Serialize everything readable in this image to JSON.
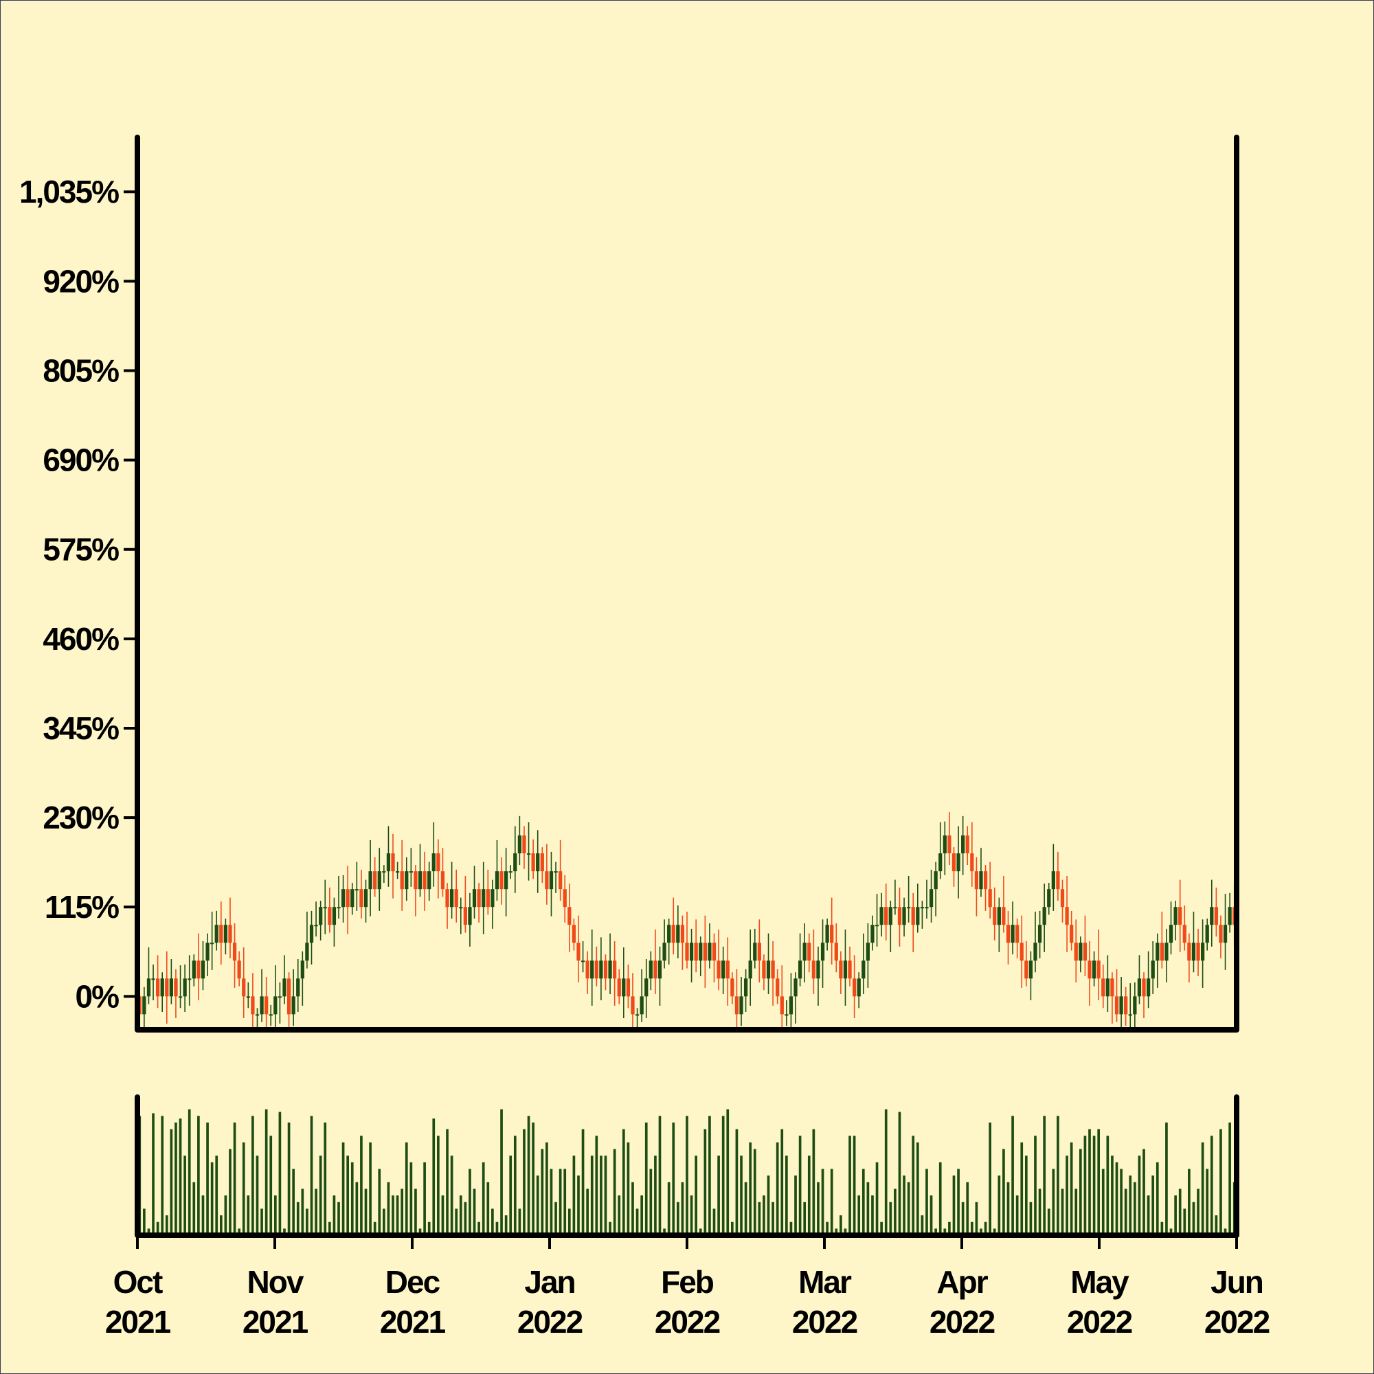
{
  "chart_data": {
    "type": "candlestick",
    "up_color": "#1e4d14",
    "down_color": "#f04a1a",
    "ylim": [
      -43,
      1105
    ],
    "yticks": [
      {
        "value": 0,
        "label": "0%"
      },
      {
        "value": 115,
        "label": "115%"
      },
      {
        "value": 230,
        "label": "230%"
      },
      {
        "value": 345,
        "label": "345%"
      },
      {
        "value": 460,
        "label": "460%"
      },
      {
        "value": 575,
        "label": "575%"
      },
      {
        "value": 690,
        "label": "690%"
      },
      {
        "value": 805,
        "label": "805%"
      },
      {
        "value": 920,
        "label": "920%"
      },
      {
        "value": 1035,
        "label": "1,035%"
      }
    ],
    "xticks": [
      [
        "Oct",
        "2021"
      ],
      [
        "Nov",
        "2021"
      ],
      [
        "Dec",
        "2021"
      ],
      [
        "Jan",
        "2022"
      ],
      [
        "Feb",
        "2022"
      ],
      [
        "Mar",
        "2022"
      ],
      [
        "Apr",
        "2022"
      ],
      [
        "May",
        "2022"
      ],
      [
        "Jun",
        "2022"
      ]
    ],
    "volume_lim": [
      0,
      100
    ],
    "open": [
      0,
      -23,
      0,
      23,
      23,
      0,
      23,
      0,
      23,
      0,
      0,
      23,
      23,
      46,
      23,
      46,
      69,
      69,
      92,
      69,
      92,
      69,
      46,
      23,
      0,
      0,
      -23,
      -23,
      0,
      -23,
      -23,
      0,
      0,
      23,
      -23,
      0,
      23,
      46,
      69,
      92,
      92,
      115,
      115,
      92,
      115,
      115,
      138,
      115,
      138,
      138,
      115,
      138,
      161,
      138,
      161,
      161,
      184,
      161,
      161,
      138,
      161,
      161,
      138,
      161,
      138,
      161,
      184,
      161,
      138,
      115,
      138,
      115,
      115,
      92,
      115,
      138,
      115,
      138,
      115,
      138,
      161,
      138,
      161,
      161,
      184,
      207,
      184,
      184,
      161,
      184,
      161,
      138,
      161,
      161,
      138,
      115,
      92,
      69,
      46,
      46,
      23,
      46,
      23,
      46,
      23,
      46,
      23,
      0,
      23,
      0,
      -23,
      -23,
      0,
      23,
      46,
      23,
      46,
      69,
      92,
      69,
      92,
      69,
      46,
      69,
      46,
      69,
      46,
      69,
      46,
      23,
      46,
      23,
      0,
      -23,
      0,
      23,
      46,
      69,
      46,
      23,
      46,
      23,
      0,
      -23,
      -23,
      0,
      23,
      46,
      69,
      46,
      23,
      46,
      69,
      92,
      69,
      46,
      23,
      46,
      23,
      0,
      23,
      46,
      69,
      92,
      92,
      115,
      92,
      115,
      115,
      92,
      115,
      115,
      92,
      115,
      115,
      115,
      138,
      161,
      184,
      207,
      184,
      161,
      184,
      207,
      184,
      161,
      138,
      161,
      138,
      115,
      92,
      115,
      92,
      69,
      92,
      69,
      46,
      23,
      46,
      69,
      92,
      115,
      138,
      161,
      138,
      115,
      92,
      69,
      46,
      69,
      46,
      23,
      46,
      23,
      0,
      23,
      0,
      -23,
      0,
      -23,
      -23,
      0,
      23,
      0,
      23,
      46,
      69,
      46,
      69,
      92,
      115,
      92,
      69,
      46,
      69,
      46,
      69,
      92,
      115,
      92,
      69,
      92,
      115
    ],
    "high": [
      25,
      12,
      63,
      41,
      53,
      31,
      58,
      48,
      35,
      40,
      41,
      53,
      54,
      81,
      71,
      81,
      109,
      110,
      122,
      100,
      127,
      94,
      58,
      63,
      18,
      30,
      -15,
      35,
      25,
      -11,
      40,
      18,
      53,
      31,
      35,
      48,
      58,
      109,
      110,
      122,
      123,
      150,
      140,
      127,
      155,
      156,
      168,
      146,
      173,
      163,
      150,
      201,
      179,
      191,
      169,
      219,
      209,
      173,
      201,
      179,
      191,
      169,
      196,
      186,
      173,
      224,
      202,
      191,
      146,
      173,
      163,
      127,
      155,
      133,
      168,
      146,
      173,
      163,
      150,
      201,
      179,
      191,
      169,
      219,
      232,
      219,
      224,
      202,
      214,
      192,
      196,
      186,
      173,
      201,
      156,
      145,
      100,
      104,
      71,
      58,
      86,
      64,
      76,
      54,
      81,
      71,
      35,
      63,
      41,
      30,
      -15,
      35,
      48,
      58,
      86,
      64,
      99,
      100,
      127,
      117,
      104,
      109,
      87,
      99,
      77,
      104,
      94,
      81,
      86,
      64,
      76,
      31,
      35,
      25,
      35,
      86,
      87,
      99,
      54,
      81,
      71,
      35,
      40,
      -5,
      30,
      31,
      81,
      94,
      81,
      86,
      64,
      99,
      100,
      127,
      94,
      58,
      86,
      64,
      53,
      31,
      81,
      94,
      104,
      132,
      133,
      145,
      123,
      150,
      140,
      127,
      155,
      133,
      145,
      123,
      150,
      163,
      173,
      224,
      225,
      237,
      192,
      219,
      232,
      219,
      224,
      179,
      191,
      169,
      173,
      140,
      127,
      155,
      110,
      122,
      100,
      104,
      71,
      58,
      109,
      110,
      145,
      146,
      196,
      186,
      150,
      155,
      110,
      99,
      77,
      104,
      71,
      58,
      86,
      41,
      53,
      31,
      35,
      25,
      12,
      17,
      18,
      53,
      31,
      58,
      71,
      81,
      109,
      87,
      122,
      123,
      150,
      117,
      81,
      109,
      87,
      99,
      100,
      150,
      140,
      104,
      132,
      133,
      145
    ],
    "low": [
      -43,
      -58,
      -10,
      -5,
      -15,
      -20,
      -35,
      -10,
      -28,
      -15,
      -20,
      -12,
      13,
      -5,
      8,
      26,
      34,
      59,
      41,
      54,
      49,
      11,
      13,
      -28,
      -15,
      -43,
      -58,
      -33,
      -51,
      -38,
      -43,
      -35,
      -10,
      -51,
      -38,
      -20,
      -12,
      36,
      41,
      77,
      72,
      80,
      82,
      64,
      100,
      95,
      80,
      105,
      110,
      100,
      95,
      103,
      128,
      110,
      146,
      141,
      126,
      151,
      110,
      123,
      141,
      103,
      128,
      110,
      123,
      141,
      126,
      128,
      87,
      100,
      95,
      80,
      82,
      64,
      100,
      95,
      80,
      105,
      87,
      123,
      118,
      103,
      151,
      133,
      169,
      164,
      149,
      151,
      133,
      146,
      118,
      103,
      133,
      123,
      95,
      57,
      59,
      18,
      31,
      3,
      -12,
      13,
      -5,
      8,
      3,
      -12,
      -10,
      -28,
      -15,
      -43,
      -58,
      -33,
      -28,
      8,
      3,
      -12,
      36,
      41,
      54,
      49,
      34,
      36,
      18,
      31,
      26,
      11,
      36,
      18,
      8,
      3,
      -12,
      -10,
      -51,
      -38,
      -20,
      -12,
      36,
      18,
      8,
      3,
      -12,
      -10,
      -51,
      -38,
      -43,
      -35,
      13,
      18,
      31,
      3,
      -12,
      11,
      59,
      41,
      31,
      3,
      -12,
      13,
      -28,
      -15,
      3,
      11,
      59,
      64,
      77,
      72,
      57,
      105,
      64,
      77,
      95,
      57,
      82,
      87,
      100,
      95,
      103,
      151,
      156,
      169,
      141,
      126,
      156,
      169,
      141,
      103,
      128,
      110,
      100,
      72,
      57,
      82,
      41,
      54,
      49,
      11,
      13,
      -5,
      31,
      49,
      57,
      105,
      110,
      123,
      95,
      57,
      59,
      18,
      31,
      26,
      -12,
      13,
      -5,
      -15,
      -20,
      -35,
      -33,
      -51,
      -38,
      -43,
      -58,
      -10,
      -28,
      -15,
      3,
      11,
      36,
      18,
      54,
      72,
      57,
      59,
      18,
      31,
      26,
      11,
      59,
      64,
      77,
      49,
      34,
      82,
      64
    ],
    "close": [
      -23,
      0,
      23,
      23,
      0,
      23,
      0,
      23,
      0,
      0,
      23,
      23,
      46,
      23,
      46,
      69,
      69,
      92,
      69,
      92,
      69,
      46,
      23,
      0,
      0,
      -23,
      -23,
      0,
      -23,
      -23,
      0,
      0,
      23,
      -23,
      0,
      23,
      46,
      69,
      92,
      92,
      115,
      115,
      92,
      115,
      115,
      138,
      115,
      138,
      138,
      115,
      138,
      161,
      138,
      161,
      161,
      184,
      161,
      161,
      138,
      161,
      161,
      138,
      161,
      138,
      161,
      184,
      161,
      138,
      115,
      138,
      115,
      115,
      92,
      115,
      138,
      115,
      138,
      115,
      138,
      161,
      138,
      161,
      161,
      184,
      207,
      184,
      184,
      161,
      184,
      161,
      138,
      161,
      161,
      138,
      115,
      92,
      69,
      46,
      46,
      23,
      46,
      23,
      46,
      23,
      46,
      23,
      0,
      23,
      0,
      -23,
      -23,
      0,
      23,
      46,
      23,
      46,
      69,
      92,
      69,
      92,
      69,
      46,
      69,
      46,
      69,
      46,
      69,
      46,
      23,
      46,
      23,
      0,
      -23,
      0,
      23,
      46,
      69,
      46,
      23,
      46,
      23,
      0,
      -23,
      -23,
      0,
      23,
      46,
      69,
      46,
      23,
      46,
      69,
      92,
      69,
      46,
      23,
      46,
      23,
      0,
      23,
      46,
      69,
      92,
      92,
      115,
      92,
      115,
      115,
      92,
      115,
      115,
      92,
      115,
      115,
      115,
      138,
      161,
      184,
      207,
      184,
      161,
      184,
      207,
      184,
      161,
      138,
      161,
      138,
      115,
      92,
      115,
      92,
      69,
      92,
      69,
      46,
      23,
      46,
      69,
      92,
      115,
      138,
      161,
      138,
      115,
      92,
      69,
      46,
      69,
      46,
      23,
      46,
      23,
      0,
      23,
      0,
      -23,
      0,
      -23,
      -23,
      0,
      23,
      0,
      23,
      46,
      69,
      46,
      69,
      92,
      115,
      92,
      69,
      46,
      69,
      46,
      69,
      92,
      115,
      92,
      69,
      92,
      115,
      92
    ],
    "volume": [
      90,
      20,
      5,
      92,
      10,
      90,
      15,
      80,
      85,
      88,
      60,
      95,
      40,
      90,
      30,
      85,
      55,
      60,
      15,
      30,
      65,
      85,
      5,
      70,
      30,
      90,
      60,
      20,
      95,
      75,
      30,
      93,
      5,
      85,
      50,
      25,
      35,
      20,
      90,
      35,
      60,
      85,
      10,
      30,
      25,
      70,
      60,
      55,
      40,
      75,
      35,
      70,
      10,
      50,
      20,
      40,
      30,
      30,
      35,
      70,
      55,
      35,
      5,
      55,
      10,
      88,
      75,
      30,
      80,
      60,
      20,
      30,
      25,
      50,
      35,
      10,
      55,
      40,
      20,
      10,
      95,
      15,
      60,
      75,
      20,
      80,
      90,
      85,
      45,
      65,
      70,
      50,
      25,
      50,
      50,
      20,
      60,
      45,
      80,
      35,
      60,
      75,
      60,
      60,
      10,
      65,
      30,
      80,
      70,
      40,
      20,
      30,
      85,
      50,
      60,
      90,
      5,
      40,
      85,
      25,
      40,
      90,
      30,
      60,
      5,
      80,
      90,
      20,
      60,
      90,
      95,
      10,
      80,
      60,
      40,
      70,
      65,
      25,
      30,
      45,
      25,
      70,
      80,
      60,
      10,
      45,
      75,
      25,
      60,
      80,
      40,
      50,
      10,
      50,
      5,
      15,
      5,
      75,
      75,
      30,
      50,
      40,
      30,
      55,
      10,
      95,
      25,
      35,
      93,
      45,
      40,
      75,
      70,
      15,
      50,
      30,
      5,
      55,
      5,
      10,
      45,
      50,
      25,
      40,
      10,
      25,
      5,
      10,
      85,
      5,
      45,
      65,
      40,
      90,
      30,
      70,
      60,
      25,
      75,
      35,
      90,
      20,
      50,
      90,
      35,
      60,
      70,
      35,
      65,
      75,
      80,
      75,
      80,
      50,
      75,
      60,
      55,
      50,
      35,
      45,
      40,
      60,
      65,
      30,
      45,
      55,
      10,
      85,
      5,
      30,
      35,
      20,
      50,
      25,
      35,
      70,
      50,
      75,
      15,
      80,
      5,
      85,
      40
    ]
  }
}
